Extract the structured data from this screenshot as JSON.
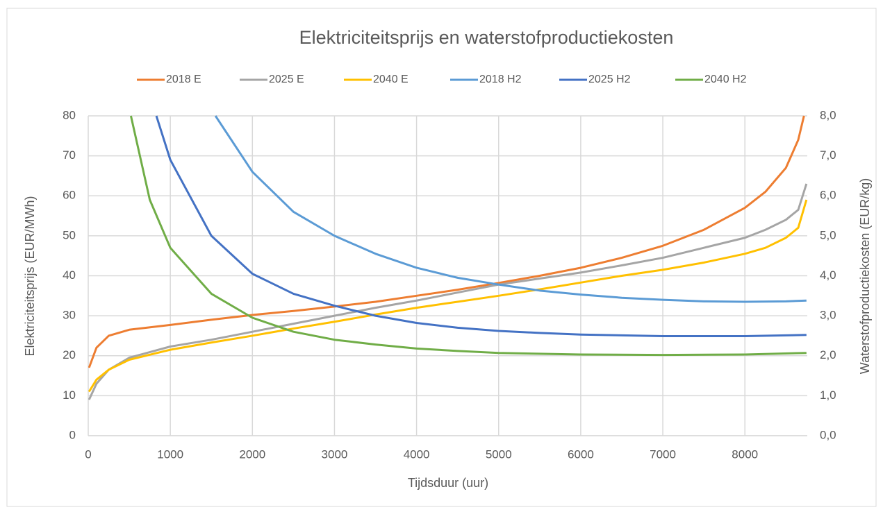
{
  "chart_data": {
    "type": "line",
    "title": "Elektriciteitsprijs en waterstofproductiekosten",
    "xlabel": "Tijdsduur (uur)",
    "ylabel": "Elektriciteitsprijs (EUR/MWh)",
    "y2label": "Waterstofproductiekosten (EUR/kg)",
    "xlim": [
      0,
      8760
    ],
    "xticks": [
      0,
      1000,
      2000,
      3000,
      4000,
      5000,
      6000,
      7000,
      8000
    ],
    "ylim": [
      0,
      80
    ],
    "yticks": [
      0,
      10,
      20,
      30,
      40,
      50,
      60,
      70,
      80
    ],
    "y2lim": [
      0,
      8
    ],
    "y2ticks": [
      {
        "value": 0,
        "label": "0,0"
      },
      {
        "value": 1,
        "label": "1,0"
      },
      {
        "value": 2,
        "label": "2,0"
      },
      {
        "value": 3,
        "label": "3,0"
      },
      {
        "value": 4,
        "label": "4,0"
      },
      {
        "value": 5,
        "label": "5,0"
      },
      {
        "value": 6,
        "label": "6,0"
      },
      {
        "value": 7,
        "label": "7,0"
      },
      {
        "value": 8,
        "label": "8,0"
      }
    ],
    "grid": true,
    "legend": "top",
    "series": [
      {
        "name": "2018 E",
        "color": "#ed7d31",
        "x": [
          10,
          100,
          250,
          500,
          1000,
          1500,
          2000,
          2500,
          3000,
          3500,
          4000,
          4500,
          5000,
          5500,
          6000,
          6500,
          7000,
          7500,
          8000,
          8250,
          8500,
          8650,
          8720
        ],
        "values": [
          17,
          22,
          25,
          26.5,
          27.7,
          29,
          30.2,
          31.2,
          32.3,
          33.5,
          35,
          36.5,
          38.2,
          40,
          42,
          44.5,
          47.5,
          51.5,
          57,
          61,
          67,
          74,
          80
        ]
      },
      {
        "name": "2025 E",
        "color": "#a5a5a5",
        "x": [
          10,
          100,
          250,
          500,
          1000,
          1500,
          2000,
          2500,
          3000,
          3500,
          4000,
          4500,
          5000,
          5500,
          6000,
          6500,
          7000,
          7500,
          8000,
          8250,
          8500,
          8650,
          8750
        ],
        "values": [
          9,
          13,
          16.5,
          19.5,
          22.3,
          24,
          26,
          28,
          30,
          32,
          33.8,
          35.8,
          37.8,
          39.3,
          40.8,
          42.6,
          44.5,
          47,
          49.5,
          51.5,
          54,
          56.5,
          63
        ]
      },
      {
        "name": "2040 E",
        "color": "#ffc000",
        "x": [
          10,
          100,
          250,
          500,
          1000,
          1500,
          2000,
          2500,
          3000,
          3500,
          4000,
          4500,
          5000,
          5500,
          6000,
          6500,
          7000,
          7500,
          8000,
          8250,
          8500,
          8650,
          8750
        ],
        "values": [
          11,
          14,
          16.5,
          19,
          21.5,
          23.3,
          25,
          26.8,
          28.5,
          30.3,
          32,
          33.5,
          35,
          36.6,
          38.3,
          40,
          41.5,
          43.3,
          45.5,
          47,
          49.5,
          52,
          59
        ]
      },
      {
        "name": "2018 H2",
        "color": "#5b9bd5",
        "axis": "y2",
        "x": [
          1550,
          2000,
          2500,
          3000,
          3500,
          4000,
          4500,
          5000,
          5500,
          6000,
          6500,
          7000,
          7500,
          8000,
          8500,
          8750
        ],
        "values": [
          8,
          6.6,
          5.6,
          5,
          4.55,
          4.2,
          3.95,
          3.78,
          3.63,
          3.53,
          3.45,
          3.4,
          3.36,
          3.35,
          3.36,
          3.38
        ]
      },
      {
        "name": "2025 H2",
        "color": "#4472c4",
        "axis": "y2",
        "x": [
          830,
          1000,
          1500,
          2000,
          2500,
          3000,
          3500,
          4000,
          4500,
          5000,
          5500,
          6000,
          7000,
          8000,
          8750
        ],
        "values": [
          8,
          6.9,
          5,
          4.05,
          3.55,
          3.25,
          3,
          2.82,
          2.7,
          2.62,
          2.57,
          2.53,
          2.49,
          2.49,
          2.52
        ]
      },
      {
        "name": "2040 H2",
        "color": "#70ad47",
        "axis": "y2",
        "x": [
          520,
          750,
          1000,
          1500,
          2000,
          2500,
          3000,
          3500,
          4000,
          4500,
          5000,
          6000,
          7000,
          8000,
          8750
        ],
        "values": [
          8,
          5.9,
          4.7,
          3.55,
          2.95,
          2.6,
          2.4,
          2.28,
          2.18,
          2.12,
          2.07,
          2.03,
          2.02,
          2.03,
          2.07
        ]
      }
    ]
  }
}
